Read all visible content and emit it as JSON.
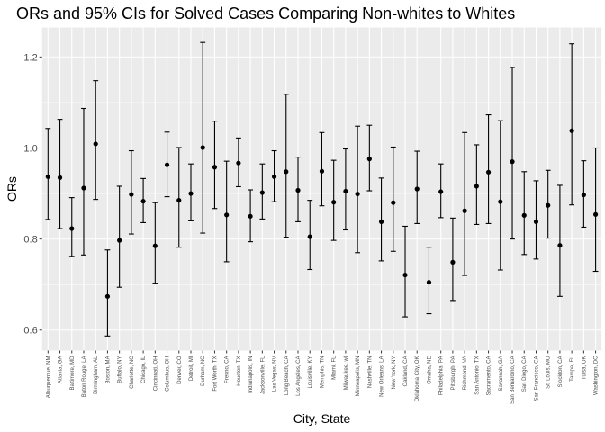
{
  "chart_data": {
    "type": "errorbar",
    "title": "ORs and 95% CIs for Solved Cases Comparing Non-whites to Whites",
    "xlabel": "City, State",
    "ylabel": "ORs",
    "ylim": [
      0.555,
      1.265
    ],
    "yticks": [
      "0.6",
      "0.8",
      "1.0",
      "1.2"
    ],
    "grid": true,
    "background": "#ebebeb",
    "categories": [
      "Albuquerque, NM",
      "Atlanta, GA",
      "Baltimore, MD",
      "Baton Rouge, LA",
      "Birmingham, AL",
      "Boston, MA",
      "Buffalo, NY",
      "Charlotte, NC",
      "Chicago, IL",
      "Cincinnati, OH",
      "Columbus, OH",
      "Denver, CO",
      "Detroit, MI",
      "Durham, NC",
      "Fort Worth, TX",
      "Fresno, CA",
      "Houston, TX",
      "Indianapolis, IN",
      "Jacksonville, FL",
      "Las Vegas, NV",
      "Long Beach, CA",
      "Los Angeles, CA",
      "Louisville, KY",
      "Memphis, TN",
      "Miami, FL",
      "Milwaukee, wI",
      "Minneapolis, MN",
      "Nashville, TN",
      "New Orleans, LA",
      "New York, NY",
      "Oakland, CA",
      "Oklahoma City, OK",
      "Omaha, NE",
      "Philadelphia, PA",
      "Pittsburgh, PA",
      "Richmond, VA",
      "San Antonio, TX",
      "Sacramento, CA",
      "Savannah, GA",
      "San Bernardino, CA",
      "San Diego, CA",
      "San Francisco, CA",
      "St. Louis, MO",
      "Stockton, CA",
      "Tampa, FL",
      "Tulsa, OK",
      "Washington, DC"
    ],
    "or": [
      0.937,
      0.935,
      0.823,
      0.912,
      1.009,
      0.674,
      0.797,
      0.898,
      0.883,
      0.785,
      0.963,
      0.885,
      0.9,
      1.001,
      0.958,
      0.853,
      0.967,
      0.85,
      0.902,
      0.937,
      0.948,
      0.907,
      0.805,
      0.949,
      0.881,
      0.905,
      0.899,
      0.976,
      0.838,
      0.88,
      0.721,
      0.91,
      0.705,
      0.904,
      0.749,
      0.862,
      0.916,
      0.947,
      0.882,
      0.97,
      0.852,
      0.838,
      0.874,
      0.786,
      1.038,
      0.897,
      0.854
    ],
    "lower": [
      0.843,
      0.823,
      0.762,
      0.765,
      0.887,
      0.587,
      0.694,
      0.811,
      0.836,
      0.703,
      0.893,
      0.782,
      0.84,
      0.813,
      0.867,
      0.75,
      0.915,
      0.794,
      0.844,
      0.882,
      0.804,
      0.838,
      0.733,
      0.873,
      0.797,
      0.82,
      0.77,
      0.906,
      0.752,
      0.773,
      0.629,
      0.834,
      0.636,
      0.847,
      0.665,
      0.72,
      0.832,
      0.834,
      0.732,
      0.8,
      0.766,
      0.756,
      0.802,
      0.674,
      0.875,
      0.826,
      0.729
    ],
    "upper": [
      1.043,
      1.063,
      0.891,
      1.087,
      1.148,
      0.776,
      0.916,
      0.994,
      0.933,
      0.88,
      1.035,
      1.001,
      0.965,
      1.232,
      1.059,
      0.971,
      1.022,
      0.908,
      0.965,
      0.994,
      1.118,
      0.98,
      0.885,
      1.034,
      0.973,
      0.998,
      1.048,
      1.05,
      0.934,
      1.002,
      0.828,
      0.993,
      0.782,
      0.965,
      0.846,
      1.034,
      1.007,
      1.073,
      1.06,
      1.177,
      0.948,
      0.928,
      0.951,
      0.918,
      1.229,
      0.972,
      1.0
    ]
  }
}
